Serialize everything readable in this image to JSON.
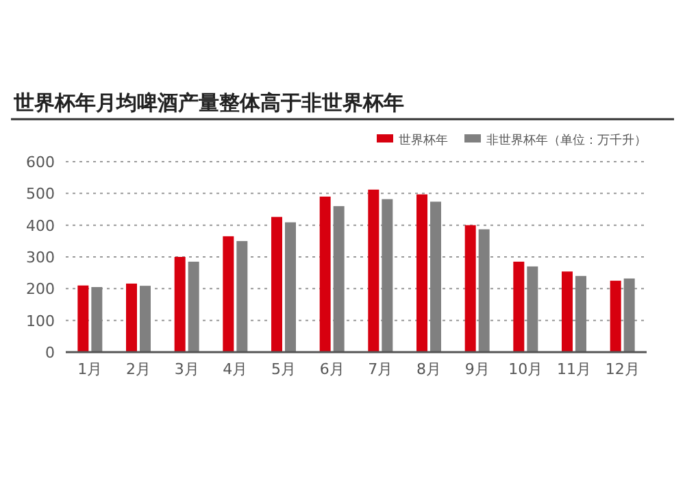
{
  "chart_data": {
    "type": "bar",
    "title": "世界杯年月均啤酒产量整体高于非世界杯年",
    "categories": [
      "1月",
      "2月",
      "3月",
      "4月",
      "5月",
      "6月",
      "7月",
      "8月",
      "9月",
      "10月",
      "11月",
      "12月"
    ],
    "series": [
      {
        "name": "世界杯年",
        "color": "#d7000f",
        "values": [
          210,
          216,
          300,
          365,
          426,
          490,
          512,
          497,
          400,
          285,
          254,
          225
        ]
      },
      {
        "name": "非世界杯年（单位：万千升）",
        "color": "#808080",
        "values": [
          205,
          209,
          285,
          350,
          409,
          460,
          482,
          474,
          387,
          270,
          240,
          232
        ]
      }
    ],
    "ylim": [
      0,
      600
    ],
    "yticks": [
      0,
      100,
      200,
      300,
      400,
      500,
      600
    ],
    "grid": "y",
    "legend": "top right"
  }
}
